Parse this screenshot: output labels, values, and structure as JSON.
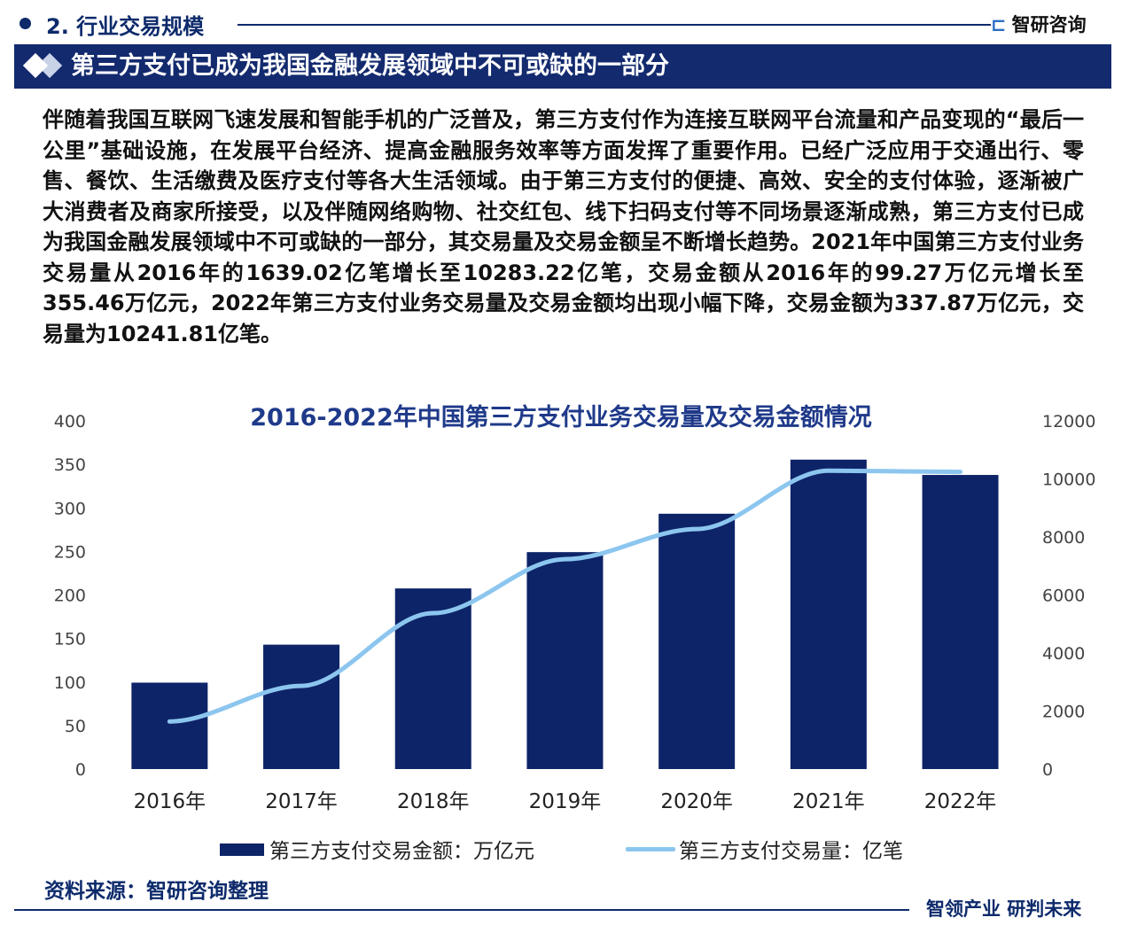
{
  "header": {
    "section": "2. 行业交易规模",
    "logo": "智研咨询",
    "banner": "第三方支付已成为我国金融发展领域中不可或缺的一部分"
  },
  "paragraph": "伴随着我国互联网飞速发展和智能手机的广泛普及，第三方支付作为连接互联网平台流量和产品变现的“最后一公里”基础设施，在发展平台经济、提高金融服务效率等方面发挥了重要作用。已经广泛应用于交通出行、零售、餐饮、生活缴费及医疗支付等各大生活领域。由于第三方支付的便捷、高效、安全的支付体验，逐渐被广大消费者及商家所接受，以及伴随网络购物、社交红包、线下扫码支付等不同场景逐渐成熟，第三方支付已成为我国金融发展领域中不可或缺的一部分，其交易量及交易金额呈不断增长趋势。2021年中国第三方支付业务交易量从2016年的1639.02亿笔增长至10283.22亿笔，交易金额从2016年的99.27万亿元增长至355.46万亿元，2022年第三方支付业务交易量及交易金额均出现小幅下降，交易金额为337.87万亿元，交易量为10241.81亿笔。",
  "chart_data": {
    "type": "bar+line",
    "title": "2016-2022年中国第三方支付业务交易量及交易金额情况",
    "categories": [
      "2016年",
      "2017年",
      "2018年",
      "2019年",
      "2020年",
      "2021年",
      "2022年"
    ],
    "series": [
      {
        "name": "第三方支付交易金额：万亿元",
        "type": "bar",
        "axis": "left",
        "color": "#0e2468",
        "values": [
          99.27,
          142.9,
          207.5,
          249.2,
          293.3,
          355.46,
          337.87
        ]
      },
      {
        "name": "第三方支付交易量：亿笔",
        "type": "line",
        "axis": "right",
        "color": "#8cc6ef",
        "values": [
          1639.02,
          2867,
          5373,
          7231,
          8272,
          10283.22,
          10241.81
        ]
      }
    ],
    "ylim_left": [
      0,
      400
    ],
    "yticks_left": [
      "0",
      "50",
      "100",
      "150",
      "200",
      "250",
      "300",
      "350",
      "400"
    ],
    "ylim_right": [
      0,
      12000
    ],
    "yticks_right": [
      "0",
      "2000",
      "4000",
      "6000",
      "8000",
      "10000",
      "12000"
    ],
    "grid": false,
    "legend": "bottom"
  },
  "footer": {
    "source": "资料来源：智研咨询整理",
    "slogan": "智领产业 研判未来"
  }
}
